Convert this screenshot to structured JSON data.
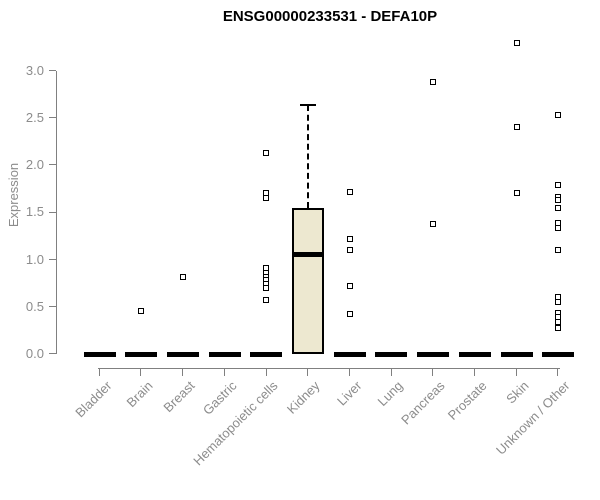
{
  "title": "ENSG00000233531 - DEFA10P",
  "y_axis": {
    "label": "Expression",
    "tick_labels": [
      "0.0",
      "0.5",
      "1.0",
      "1.5",
      "2.0",
      "2.5",
      "3.0"
    ],
    "tick_values": [
      0,
      0.5,
      1,
      1.5,
      2,
      2.5,
      3
    ]
  },
  "colors": {
    "box_fill": "#EDE8D0",
    "box_border": "#000000",
    "axis_line": "#808080",
    "axis_text": "#8C8C8C",
    "title_text": "#000000",
    "point": "#000000",
    "background": "#FFFFFF"
  },
  "chart_data": {
    "type": "boxplot",
    "title": "ENSG00000233531 - DEFA10P",
    "xlabel": "",
    "ylabel": "Expression",
    "ylim": [
      0,
      3.3
    ],
    "yticks": [
      0,
      0.5,
      1,
      1.5,
      2,
      2.5,
      3
    ],
    "grid": false,
    "categories": [
      "Bladder",
      "Brain",
      "Breast",
      "Gastric",
      "Hematopoietic cells",
      "Kidney",
      "Liver",
      "Lung",
      "Pancreas",
      "Prostate",
      "Skin",
      "Unknown / Other"
    ],
    "boxes": [
      {
        "category": "Bladder",
        "q1": 0,
        "median": 0,
        "q3": 0,
        "whisker_low": 0,
        "whisker_high": 0,
        "outliers": []
      },
      {
        "category": "Brain",
        "q1": 0,
        "median": 0,
        "q3": 0,
        "whisker_low": 0,
        "whisker_high": 0,
        "outliers": [
          0.45
        ]
      },
      {
        "category": "Breast",
        "q1": 0,
        "median": 0,
        "q3": 0,
        "whisker_low": 0,
        "whisker_high": 0,
        "outliers": [
          0.81
        ]
      },
      {
        "category": "Gastric",
        "q1": 0,
        "median": 0,
        "q3": 0,
        "whisker_low": 0,
        "whisker_high": 0,
        "outliers": []
      },
      {
        "category": "Hematopoietic cells",
        "q1": 0,
        "median": 0,
        "q3": 0,
        "whisker_low": 0,
        "whisker_high": 0,
        "outliers": [
          2.13,
          1.7,
          1.65,
          0.91,
          0.86,
          0.82,
          0.78,
          0.74,
          0.7,
          0.57
        ]
      },
      {
        "category": "Kidney",
        "q1": 0,
        "median": 1.05,
        "q3": 1.55,
        "whisker_low": 0,
        "whisker_high": 2.64,
        "outliers": []
      },
      {
        "category": "Liver",
        "q1": 0,
        "median": 0,
        "q3": 0,
        "whisker_low": 0,
        "whisker_high": 0,
        "outliers": [
          1.71,
          1.22,
          1.1,
          0.72,
          0.42
        ]
      },
      {
        "category": "Lung",
        "q1": 0,
        "median": 0,
        "q3": 0,
        "whisker_low": 0,
        "whisker_high": 0,
        "outliers": []
      },
      {
        "category": "Pancreas",
        "q1": 0,
        "median": 0,
        "q3": 0,
        "whisker_low": 0,
        "whisker_high": 0,
        "outliers": [
          2.88,
          1.38
        ]
      },
      {
        "category": "Prostate",
        "q1": 0,
        "median": 0,
        "q3": 0,
        "whisker_low": 0,
        "whisker_high": 0,
        "outliers": []
      },
      {
        "category": "Skin",
        "q1": 0,
        "median": 0,
        "q3": 0,
        "whisker_low": 0,
        "whisker_high": 0,
        "outliers": [
          3.29,
          2.4,
          1.7
        ]
      },
      {
        "category": "Unknown / Other",
        "q1": 0,
        "median": 0,
        "q3": 0,
        "whisker_low": 0,
        "whisker_high": 0,
        "outliers": [
          2.53,
          1.79,
          1.66,
          1.63,
          1.54,
          1.39,
          1.33,
          1.1,
          0.6,
          0.55,
          0.43,
          0.39,
          0.34,
          0.28
        ]
      }
    ]
  }
}
